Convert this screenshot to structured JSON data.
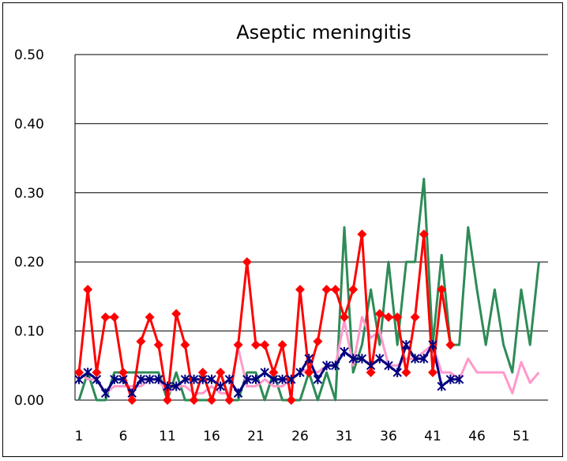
{
  "chart_data": {
    "type": "line",
    "title": "Aseptic meningitis",
    "xlabel": "",
    "ylabel": "",
    "xlim": [
      1,
      53
    ],
    "ylim": [
      0,
      0.5
    ],
    "y_ticks": [
      "0.00",
      "0.10",
      "0.20",
      "0.30",
      "0.40",
      "0.50"
    ],
    "x_tick_labels": [
      "1",
      "6",
      "11",
      "16",
      "21",
      "26",
      "31",
      "36",
      "41",
      "46",
      "51"
    ],
    "grid": "horizontal",
    "legend": "none",
    "series": [
      {
        "color": "#2e8b57",
        "marker": "none",
        "values": [
          0.0,
          0.04,
          0.0,
          0.0,
          0.04,
          0.04,
          0.04,
          0.04,
          0.04,
          0.04,
          0.0,
          0.04,
          0.0,
          0.0,
          0.0,
          0.0,
          0.04,
          0.0,
          0.0,
          0.04,
          0.04,
          0.0,
          0.04,
          0.0,
          0.0,
          0.0,
          0.04,
          0.0,
          0.04,
          0.0,
          0.25,
          0.04,
          0.08,
          0.16,
          0.08,
          0.2,
          0.08,
          0.2,
          0.2,
          0.32,
          0.08,
          0.21,
          0.08,
          0.08,
          0.25,
          0.16,
          0.08,
          0.16,
          0.08,
          0.04,
          0.16,
          0.08,
          0.2
        ]
      },
      {
        "color": "#ff99cc",
        "marker": "none",
        "values": [
          0.04,
          0.03,
          0.03,
          0.01,
          0.02,
          0.02,
          0.02,
          0.02,
          0.03,
          0.03,
          0.01,
          0.02,
          0.02,
          0.01,
          0.01,
          0.02,
          0.01,
          0.01,
          0.075,
          0.02,
          0.02,
          0.03,
          0.02,
          0.02,
          0.03,
          0.04,
          0.045,
          0.04,
          0.05,
          0.05,
          0.115,
          0.05,
          0.12,
          0.09,
          0.1,
          0.05,
          0.05,
          0.06,
          0.06,
          0.07,
          0.08,
          0.04,
          0.04,
          0.03,
          0.06,
          0.04,
          0.04,
          0.04,
          0.04,
          0.01,
          0.055,
          0.025,
          0.04
        ]
      },
      {
        "color": "#000080",
        "marker": "asterisk",
        "values": [
          0.03,
          0.04,
          0.03,
          0.01,
          0.03,
          0.03,
          0.01,
          0.03,
          0.03,
          0.03,
          0.02,
          0.02,
          0.03,
          0.03,
          0.03,
          0.03,
          0.02,
          0.03,
          0.01,
          0.03,
          0.03,
          0.04,
          0.03,
          0.03,
          0.03,
          0.04,
          0.06,
          0.03,
          0.05,
          0.05,
          0.07,
          0.06,
          0.06,
          0.05,
          0.06,
          0.05,
          0.04,
          0.08,
          0.06,
          0.06,
          0.08,
          0.02,
          0.03,
          0.03
        ]
      },
      {
        "color": "#ff0000",
        "marker": "diamond",
        "values": [
          0.04,
          0.16,
          0.04,
          0.12,
          0.12,
          0.04,
          0.0,
          0.085,
          0.12,
          0.08,
          0.0,
          0.125,
          0.08,
          0.0,
          0.04,
          0.0,
          0.04,
          0.0,
          0.08,
          0.2,
          0.08,
          0.08,
          0.04,
          0.08,
          0.0,
          0.16,
          0.04,
          0.085,
          0.16,
          0.16,
          0.12,
          0.16,
          0.24,
          0.04,
          0.125,
          0.12,
          0.12,
          0.04,
          0.12,
          0.24,
          0.04,
          0.16,
          0.08
        ]
      }
    ]
  }
}
